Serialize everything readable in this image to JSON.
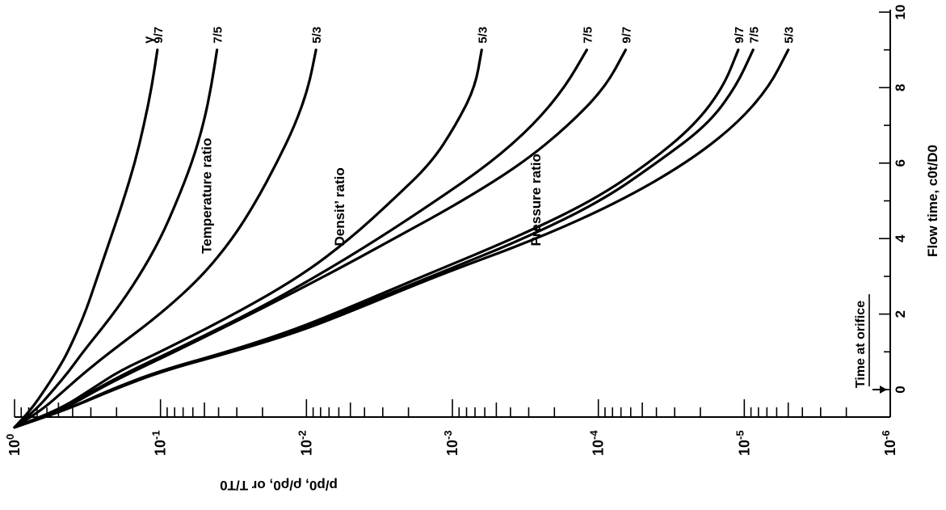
{
  "chart_data": {
    "type": "line",
    "orientation": "rotated-90-clockwise",
    "x_axis": {
      "label": "Flow time, c0t/D0",
      "range": [
        -1,
        10
      ],
      "ticks": [
        "0",
        "2",
        "4",
        "6",
        "8",
        "10"
      ],
      "tick_values": [
        0,
        2,
        4,
        6,
        8,
        10
      ],
      "annotation": "Time at orifice",
      "annotation_x": 0
    },
    "y_axis": {
      "label": "p/p0, ρ/ρ0, or T/T0",
      "scale": "log",
      "range": [
        1e-06,
        1
      ],
      "ticks": [
        "10^0",
        "10^-1",
        "10^-2",
        "10^-3",
        "10^-4",
        "10^-5",
        "10^-6"
      ],
      "tick_values": [
        1,
        0.1,
        0.01,
        0.001,
        0.0001,
        1e-05,
        1e-06
      ]
    },
    "groups": [
      {
        "name": "Temperature ratio",
        "header": "γ",
        "series": [
          {
            "name": "9/7",
            "x": [
              -1,
              -0.5,
              0,
              0.5,
              1,
              2,
              3,
              4,
              5,
              6,
              7,
              8,
              9
            ],
            "y": [
              1,
              0.76,
              0.62,
              0.51,
              0.43,
              0.33,
              0.27,
              0.22,
              0.18,
              0.15,
              0.13,
              0.115,
              0.105
            ]
          },
          {
            "name": "7/5",
            "x": [
              -1,
              -0.5,
              0,
              0.5,
              1,
              2,
              3,
              4,
              5,
              6,
              7,
              8,
              9
            ],
            "y": [
              1,
              0.7,
              0.54,
              0.42,
              0.34,
              0.21,
              0.14,
              0.1,
              0.077,
              0.061,
              0.051,
              0.045,
              0.041
            ]
          },
          {
            "name": "5/3",
            "x": [
              -1,
              -0.5,
              0,
              0.5,
              1,
              2,
              3,
              4,
              5,
              6,
              7,
              8,
              9
            ],
            "y": [
              1,
              0.63,
              0.45,
              0.32,
              0.22,
              0.1,
              0.052,
              0.032,
              0.022,
              0.016,
              0.012,
              0.0097,
              0.0086
            ]
          }
        ]
      },
      {
        "name": "Densit’ ratio",
        "series": [
          {
            "name": "5/3",
            "x": [
              -1,
              -0.5,
              0,
              0.5,
              1,
              2,
              3,
              4,
              5,
              6,
              7,
              8,
              9
            ],
            "y": [
              1,
              0.48,
              0.3,
              0.19,
              0.1,
              0.031,
              0.011,
              0.005,
              0.0026,
              0.0014,
              0.00095,
              0.0007,
              0.00063
            ]
          },
          {
            "name": "7/5",
            "x": [
              -1,
              -0.5,
              0,
              0.5,
              1,
              2,
              3,
              4,
              5,
              6,
              7,
              8,
              9
            ],
            "y": [
              1,
              0.46,
              0.28,
              0.16,
              0.085,
              0.025,
              0.0085,
              0.0032,
              0.0013,
              0.00055,
              0.00028,
              0.00017,
              0.00012
            ]
          },
          {
            "name": "9/7",
            "x": [
              -1,
              -0.5,
              0,
              0.5,
              1,
              2,
              3,
              4,
              5,
              6,
              7,
              8,
              9
            ],
            "y": [
              1,
              0.45,
              0.27,
              0.15,
              0.08,
              0.024,
              0.0075,
              0.0025,
              0.00085,
              0.00033,
              0.00016,
              9e-05,
              6.5e-05
            ]
          }
        ]
      },
      {
        "name": "Pressure ratio",
        "series": [
          {
            "name": "9/7",
            "x": [
              -1,
              -0.5,
              0,
              0.5,
              1,
              1.5,
              2,
              3,
              4,
              5,
              6,
              7,
              8,
              9
            ],
            "y": [
              1,
              0.42,
              0.22,
              0.1,
              0.035,
              0.014,
              0.0065,
              0.0016,
              0.00038,
              0.00011,
              4.5e-05,
              2.2e-05,
              1.4e-05,
              1.1e-05
            ]
          },
          {
            "name": "7/5",
            "x": [
              -1,
              -0.5,
              0,
              0.5,
              1,
              1.5,
              2,
              3,
              4,
              5,
              6,
              7,
              8,
              9
            ],
            "y": [
              1,
              0.42,
              0.22,
              0.1,
              0.034,
              0.013,
              0.006,
              0.0014,
              0.00032,
              9.5e-05,
              4e-05,
              1.8e-05,
              1.15e-05,
              8.7e-06
            ]
          },
          {
            "name": "5/3",
            "x": [
              -1,
              -0.5,
              0,
              0.5,
              1,
              1.5,
              2,
              3,
              4,
              5,
              6,
              7,
              8,
              9
            ],
            "y": [
              1,
              0.42,
              0.21,
              0.095,
              0.032,
              0.012,
              0.0055,
              0.0013,
              0.00026,
              7e-05,
              2.5e-05,
              1.15e-05,
              6.8e-06,
              5e-06
            ]
          }
        ]
      }
    ]
  }
}
